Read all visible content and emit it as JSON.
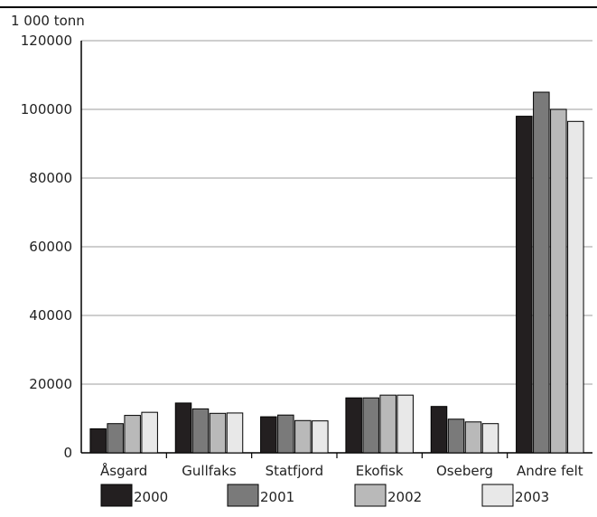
{
  "chart_data": {
    "type": "bar",
    "title": "",
    "unit_label": "1 000 tonn",
    "xlabel": "",
    "ylabel": "",
    "ylim": [
      0,
      120000
    ],
    "yticks": [
      0,
      20000,
      40000,
      60000,
      80000,
      100000,
      120000
    ],
    "ytick_labels": [
      "0",
      "20000",
      "40000",
      "60000",
      "80000",
      "100000",
      "120000"
    ],
    "grid": true,
    "legend_position": "bottom",
    "categories": [
      "Åsgard",
      "Gullfaks",
      "Statfjord",
      "Ekofisk",
      "Oseberg",
      "Andre felt"
    ],
    "series": [
      {
        "name": "2000",
        "color": "#231f20",
        "values": [
          7000,
          14500,
          10500,
          16000,
          13500,
          98000
        ]
      },
      {
        "name": "2001",
        "color": "#7a7a7a",
        "values": [
          8500,
          12800,
          11000,
          16000,
          9800,
          105000
        ]
      },
      {
        "name": "2002",
        "color": "#b9b9b9",
        "values": [
          10900,
          11500,
          9400,
          16800,
          9000,
          100000
        ]
      },
      {
        "name": "2003",
        "color": "#e8e8e8",
        "values": [
          11800,
          11600,
          9300,
          16800,
          8500,
          96500
        ]
      }
    ]
  }
}
